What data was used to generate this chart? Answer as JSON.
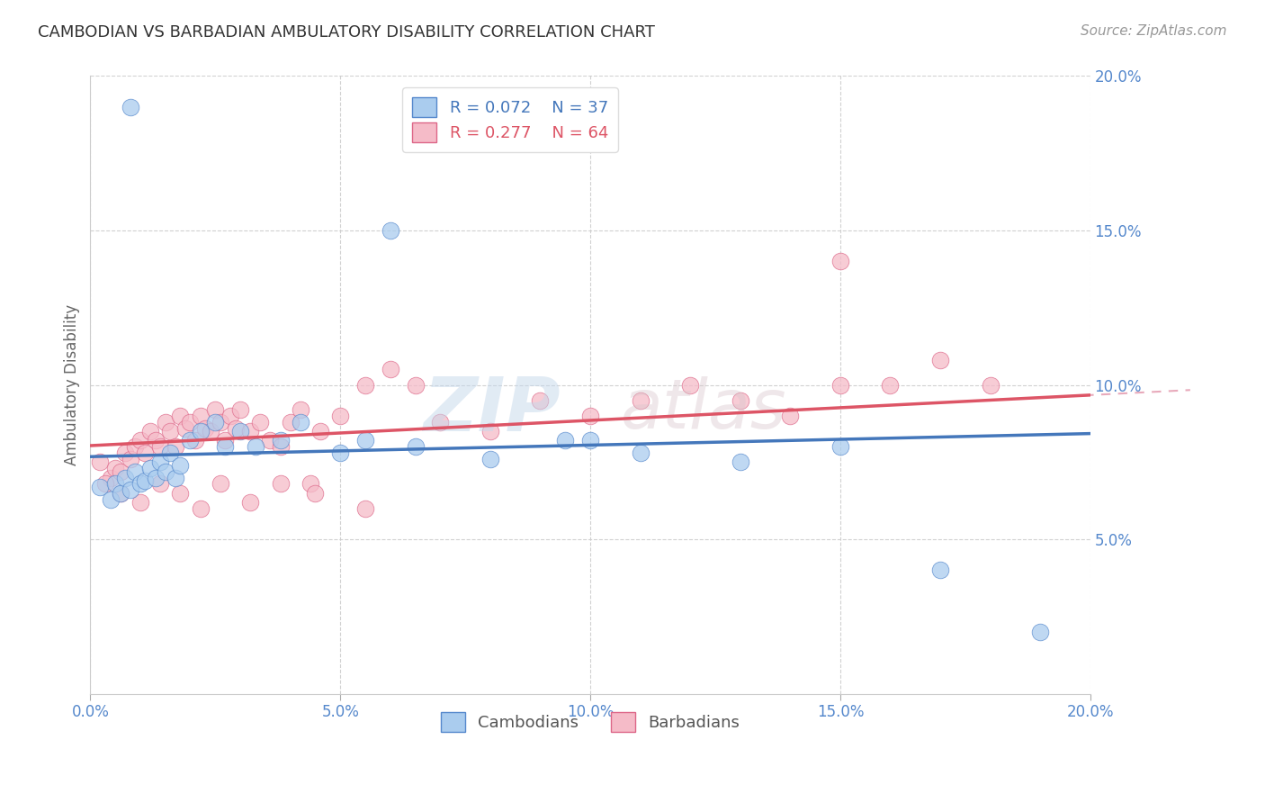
{
  "title": "CAMBODIAN VS BARBADIAN AMBULATORY DISABILITY CORRELATION CHART",
  "source": "Source: ZipAtlas.com",
  "ylabel": "Ambulatory Disability",
  "xlim": [
    0.0,
    0.2
  ],
  "ylim": [
    0.0,
    0.2
  ],
  "xticks": [
    0.0,
    0.05,
    0.1,
    0.15,
    0.2
  ],
  "yticks": [
    0.05,
    0.1,
    0.15,
    0.2
  ],
  "xticklabels": [
    "0.0%",
    "5.0%",
    "10.0%",
    "15.0%",
    "20.0%"
  ],
  "yticklabels": [
    "5.0%",
    "10.0%",
    "15.0%",
    "20.0%"
  ],
  "cambodian_fill": "#aaccee",
  "barbadian_fill": "#f5bbc8",
  "cambodian_edge": "#5588cc",
  "barbadian_edge": "#dd6688",
  "cambodian_line": "#4477bb",
  "barbadian_line": "#dd5566",
  "barbadian_dash": "#e8aabb",
  "R_cambodian": 0.072,
  "N_cambodian": 37,
  "R_barbadian": 0.277,
  "N_barbadian": 64,
  "tick_color": "#5588cc",
  "title_color": "#333333",
  "source_color": "#999999",
  "ylabel_color": "#666666",
  "background": "#ffffff",
  "grid_color": "#cccccc",
  "cambodian_x": [
    0.002,
    0.004,
    0.005,
    0.006,
    0.007,
    0.008,
    0.009,
    0.01,
    0.011,
    0.012,
    0.013,
    0.014,
    0.015,
    0.016,
    0.017,
    0.018,
    0.02,
    0.022,
    0.025,
    0.027,
    0.03,
    0.033,
    0.038,
    0.042,
    0.05,
    0.055,
    0.065,
    0.08,
    0.095,
    0.11,
    0.13,
    0.15,
    0.17,
    0.19,
    0.06,
    0.1,
    0.008
  ],
  "cambodian_y": [
    0.067,
    0.063,
    0.068,
    0.065,
    0.07,
    0.066,
    0.072,
    0.068,
    0.069,
    0.073,
    0.07,
    0.075,
    0.072,
    0.078,
    0.07,
    0.074,
    0.082,
    0.085,
    0.088,
    0.08,
    0.085,
    0.08,
    0.082,
    0.088,
    0.078,
    0.082,
    0.08,
    0.076,
    0.082,
    0.078,
    0.075,
    0.08,
    0.04,
    0.02,
    0.15,
    0.082,
    0.19
  ],
  "barbadian_x": [
    0.002,
    0.004,
    0.005,
    0.006,
    0.007,
    0.008,
    0.009,
    0.01,
    0.011,
    0.012,
    0.013,
    0.014,
    0.015,
    0.016,
    0.017,
    0.018,
    0.019,
    0.02,
    0.021,
    0.022,
    0.023,
    0.024,
    0.025,
    0.026,
    0.027,
    0.028,
    0.029,
    0.03,
    0.032,
    0.034,
    0.036,
    0.038,
    0.04,
    0.042,
    0.044,
    0.046,
    0.05,
    0.055,
    0.06,
    0.065,
    0.07,
    0.08,
    0.09,
    0.1,
    0.11,
    0.12,
    0.13,
    0.14,
    0.15,
    0.16,
    0.17,
    0.18,
    0.003,
    0.006,
    0.01,
    0.014,
    0.018,
    0.022,
    0.026,
    0.032,
    0.038,
    0.045,
    0.055,
    0.15
  ],
  "barbadian_y": [
    0.075,
    0.07,
    0.073,
    0.072,
    0.078,
    0.076,
    0.08,
    0.082,
    0.078,
    0.085,
    0.082,
    0.08,
    0.088,
    0.085,
    0.08,
    0.09,
    0.086,
    0.088,
    0.082,
    0.09,
    0.086,
    0.085,
    0.092,
    0.088,
    0.082,
    0.09,
    0.086,
    0.092,
    0.085,
    0.088,
    0.082,
    0.08,
    0.088,
    0.092,
    0.068,
    0.085,
    0.09,
    0.1,
    0.105,
    0.1,
    0.088,
    0.085,
    0.095,
    0.09,
    0.095,
    0.1,
    0.095,
    0.09,
    0.1,
    0.1,
    0.108,
    0.1,
    0.068,
    0.065,
    0.062,
    0.068,
    0.065,
    0.06,
    0.068,
    0.062,
    0.068,
    0.065,
    0.06,
    0.14
  ]
}
